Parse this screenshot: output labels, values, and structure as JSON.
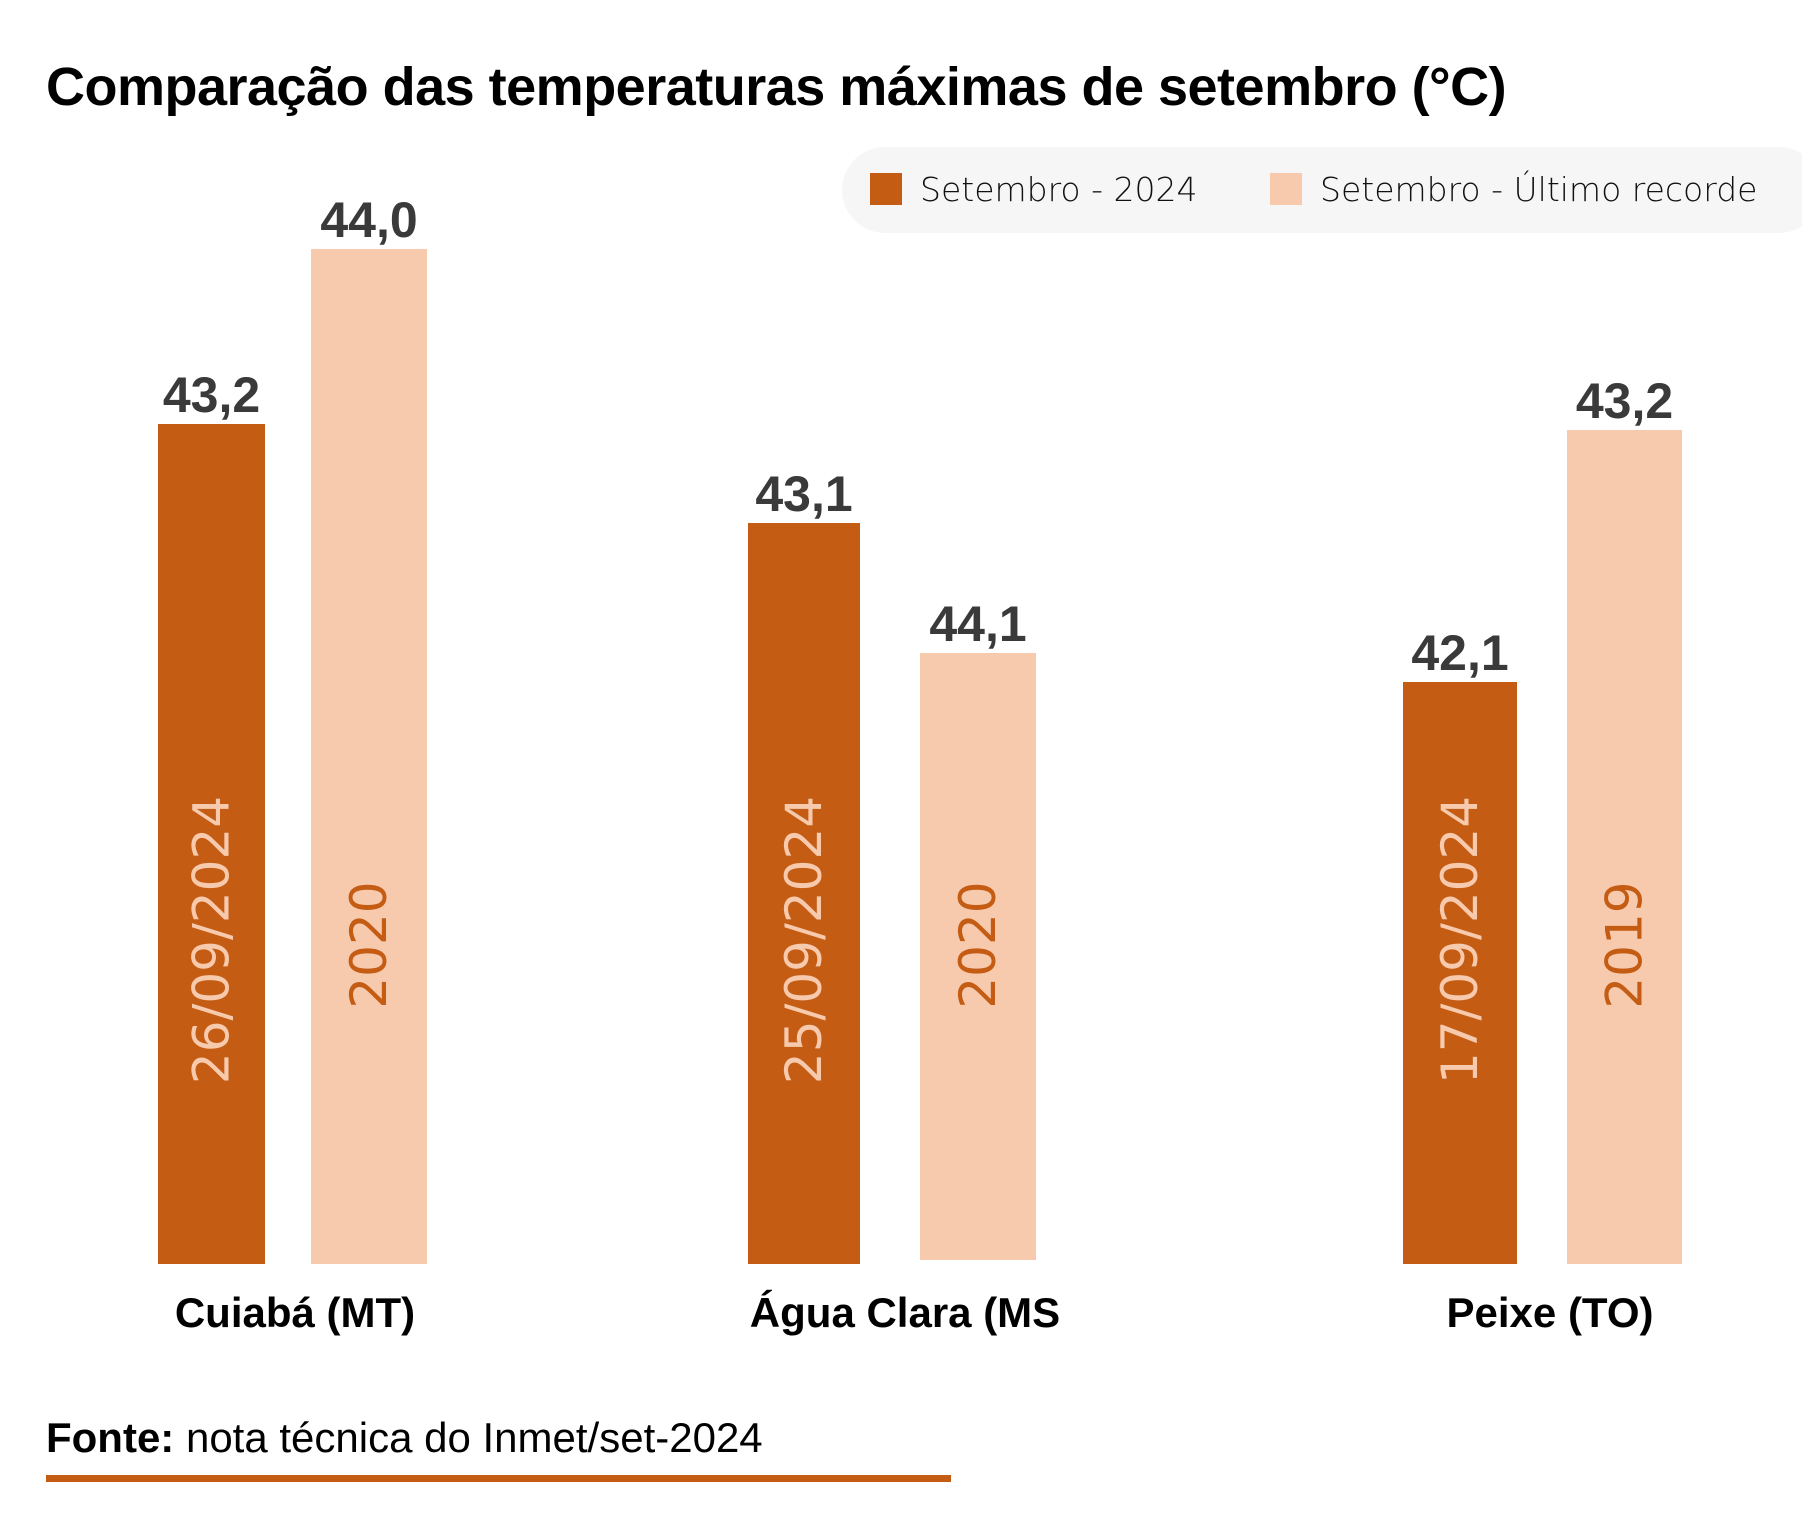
{
  "chart_data": {
    "type": "bar",
    "title": "Comparação das temperaturas máximas de setembro (°C)",
    "xlabel": "",
    "ylabel": "",
    "grid": false,
    "legend_position": "top-right",
    "categories": [
      "Cuiabá (MT)",
      "Água Clara (MS",
      "Peixe (TO)"
    ],
    "series": [
      {
        "name": "Setembro - 2024",
        "color": "#c45c14",
        "values": [
          43.2,
          43.1,
          42.1
        ],
        "value_labels": [
          "43,2",
          "43,1",
          "42,1"
        ],
        "bar_annotations": [
          "26/09/2024",
          "25/09/2024",
          "17/09/2024"
        ],
        "annotation_color": "#f7caad"
      },
      {
        "name": "Setembro - Último recorde",
        "color": "#f7caad",
        "values": [
          44.0,
          44.1,
          43.2
        ],
        "value_labels": [
          "44,0",
          "44,1",
          "43,2"
        ],
        "bar_annotations": [
          "2020",
          "2020",
          "2019"
        ],
        "annotation_color": "#c45c14"
      }
    ]
  },
  "legend": {
    "items": [
      {
        "label": "Setembro - 2024",
        "color": "#c45c14"
      },
      {
        "label": "Setembro - Último recorde",
        "color": "#f7caad"
      }
    ]
  },
  "footer": {
    "source_label": "Fonte:",
    "source_text": " nota técnica do Inmet/set-2024",
    "rule_color": "#c45c14"
  }
}
